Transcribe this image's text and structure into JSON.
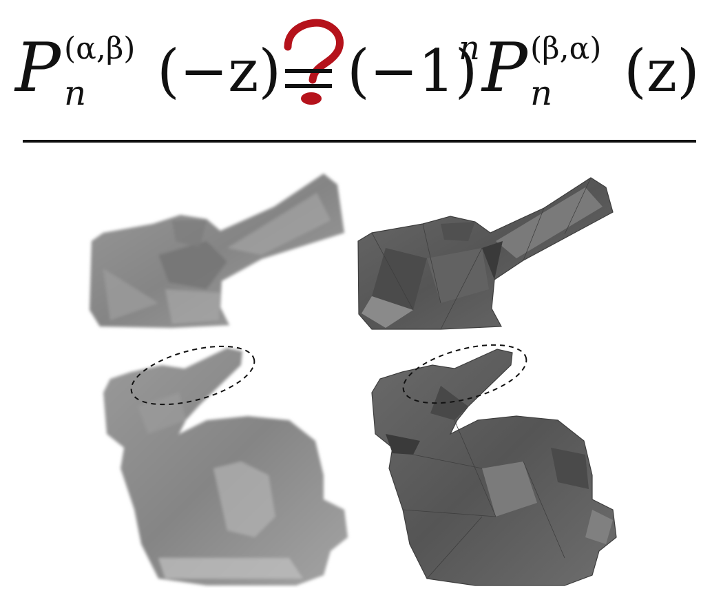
{
  "equation": {
    "lhs": {
      "symbol": "P",
      "subscript": "n",
      "superscript": "(α,β)",
      "argument": "(−z)"
    },
    "relation": {
      "glyph": "?",
      "color": "#b5121b"
    },
    "rhs": {
      "sign_factor": "(−1)",
      "sign_exponent": "n",
      "symbol": "P",
      "subscript": "n",
      "superscript": "(β,α)",
      "argument": "(z)"
    }
  },
  "figure": {
    "panels": [
      {
        "position": "top-left",
        "subject": "bunny-ear-closeup",
        "rendering": "blurred-light-gray"
      },
      {
        "position": "top-right",
        "subject": "bunny-ear-closeup",
        "rendering": "sharp-dark-gray"
      },
      {
        "position": "bottom-left",
        "subject": "bunny-full",
        "rendering": "blurred-light-gray",
        "highlight": "dashed-ellipse-around-ear"
      },
      {
        "position": "bottom-right",
        "subject": "bunny-full",
        "rendering": "sharp-dark-gray",
        "highlight": "dashed-ellipse-around-ear"
      }
    ],
    "colors": {
      "light_mesh": "#8f8f8f",
      "dark_mesh": "#5b5b5b",
      "edge_light": "#c9c9c9",
      "edge_dark": "#3e3e3e"
    }
  }
}
